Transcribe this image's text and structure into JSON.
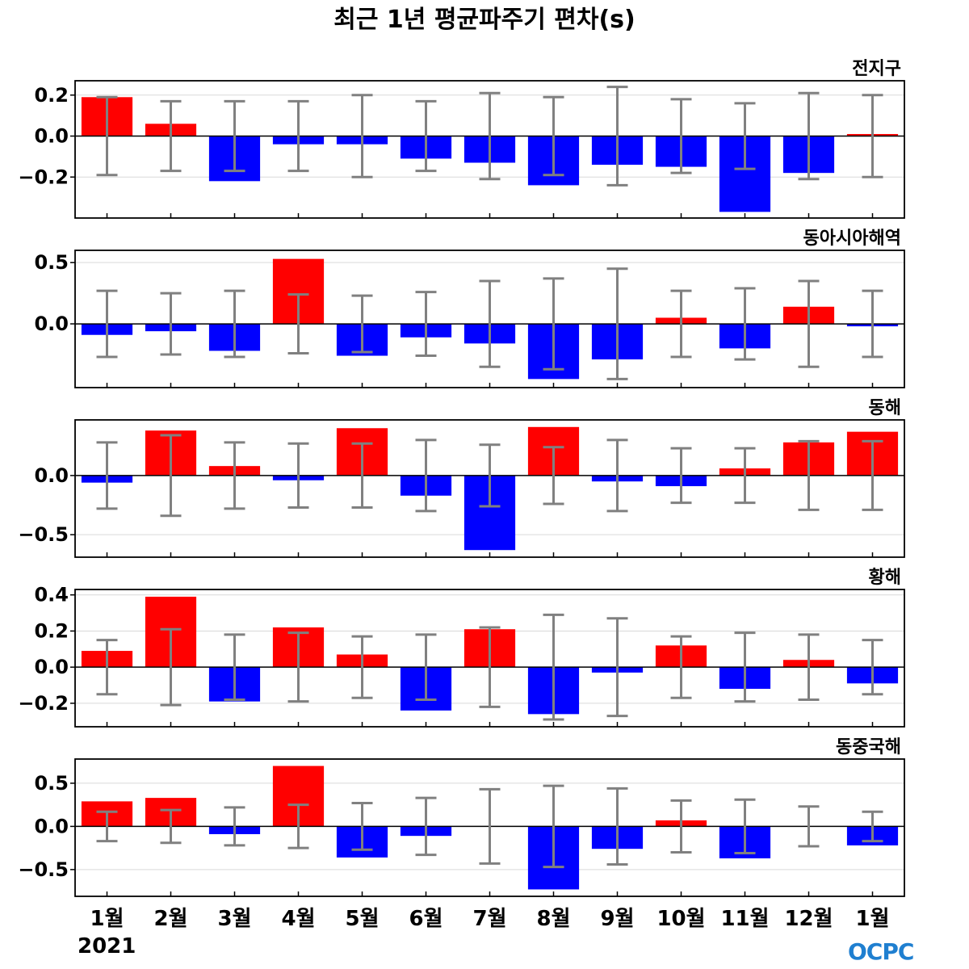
{
  "title": "최근 1년 평균파주기 편차(s)",
  "year_label": "2021",
  "logo_text": "OCPC",
  "colors": {
    "positive": "#ff0000",
    "negative": "#0000ff",
    "errorbar": "#808080",
    "zeroline": "#000000",
    "grid": "#d9d9d9",
    "logo": "#1f7fd0"
  },
  "chart_data": [
    {
      "type": "bar",
      "region": "전지구",
      "categories": [
        "1월",
        "2월",
        "3월",
        "4월",
        "5월",
        "6월",
        "7월",
        "8월",
        "9월",
        "10월",
        "11월",
        "12월",
        "1월"
      ],
      "values": [
        0.19,
        0.06,
        -0.22,
        -0.04,
        -0.04,
        -0.11,
        -0.13,
        -0.24,
        -0.14,
        -0.15,
        -0.37,
        -0.18,
        0.01
      ],
      "error_upper": [
        0.19,
        0.17,
        0.17,
        0.17,
        0.2,
        0.17,
        0.21,
        0.19,
        0.24,
        0.18,
        0.16,
        0.21,
        0.2
      ],
      "error_lower": [
        -0.19,
        -0.17,
        -0.17,
        -0.17,
        -0.2,
        -0.17,
        -0.21,
        -0.19,
        -0.24,
        -0.18,
        -0.16,
        -0.21,
        -0.2
      ],
      "ylim": [
        -0.4,
        0.27
      ],
      "yticks": [
        0.2,
        0.0,
        -0.2
      ],
      "ytick_labels": [
        "0.2",
        "0.0",
        "−0.2"
      ],
      "grid": true
    },
    {
      "type": "bar",
      "region": "동아시아해역",
      "categories": [
        "1월",
        "2월",
        "3월",
        "4월",
        "5월",
        "6월",
        "7월",
        "8월",
        "9월",
        "10월",
        "11월",
        "12월",
        "1월"
      ],
      "values": [
        -0.09,
        -0.06,
        -0.22,
        0.53,
        -0.26,
        -0.11,
        -0.16,
        -0.45,
        -0.29,
        0.05,
        -0.2,
        0.14,
        -0.02
      ],
      "error_upper": [
        0.27,
        0.25,
        0.27,
        0.24,
        0.23,
        0.26,
        0.35,
        0.37,
        0.45,
        0.27,
        0.29,
        0.35,
        0.27
      ],
      "error_lower": [
        -0.27,
        -0.25,
        -0.27,
        -0.24,
        -0.23,
        -0.26,
        -0.35,
        -0.37,
        -0.45,
        -0.27,
        -0.29,
        -0.35,
        -0.27
      ],
      "ylim": [
        -0.52,
        0.6
      ],
      "yticks": [
        0.5,
        0.0
      ],
      "ytick_labels": [
        "0.5",
        "0.0"
      ],
      "grid": true
    },
    {
      "type": "bar",
      "region": "동해",
      "categories": [
        "1월",
        "2월",
        "3월",
        "4월",
        "5월",
        "6월",
        "7월",
        "8월",
        "9월",
        "10월",
        "11월",
        "12월",
        "1월"
      ],
      "values": [
        -0.06,
        0.38,
        0.08,
        -0.04,
        0.4,
        -0.17,
        -0.63,
        0.41,
        -0.05,
        -0.09,
        0.06,
        0.28,
        0.37
      ],
      "error_upper": [
        0.28,
        0.34,
        0.28,
        0.27,
        0.27,
        0.3,
        0.26,
        0.24,
        0.3,
        0.23,
        0.23,
        0.29,
        0.29
      ],
      "error_lower": [
        -0.28,
        -0.34,
        -0.28,
        -0.27,
        -0.27,
        -0.3,
        -0.26,
        -0.24,
        -0.3,
        -0.23,
        -0.23,
        -0.29,
        -0.29
      ],
      "ylim": [
        -0.69,
        0.47
      ],
      "yticks": [
        0.0,
        -0.5
      ],
      "ytick_labels": [
        "0.0",
        "−0.5"
      ],
      "grid": true
    },
    {
      "type": "bar",
      "region": "황해",
      "categories": [
        "1월",
        "2월",
        "3월",
        "4월",
        "5월",
        "6월",
        "7월",
        "8월",
        "9월",
        "10월",
        "11월",
        "12월",
        "1월"
      ],
      "values": [
        0.09,
        0.39,
        -0.19,
        0.22,
        0.07,
        -0.24,
        0.21,
        -0.26,
        -0.03,
        0.12,
        -0.12,
        0.04,
        -0.09
      ],
      "error_upper": [
        0.15,
        0.21,
        0.18,
        0.19,
        0.17,
        0.18,
        0.22,
        0.29,
        0.27,
        0.17,
        0.19,
        0.18,
        0.15
      ],
      "error_lower": [
        -0.15,
        -0.21,
        -0.18,
        -0.19,
        -0.17,
        -0.18,
        -0.22,
        -0.29,
        -0.27,
        -0.17,
        -0.19,
        -0.18,
        -0.15
      ],
      "ylim": [
        -0.33,
        0.43
      ],
      "yticks": [
        0.4,
        0.2,
        0.0,
        -0.2
      ],
      "ytick_labels": [
        "0.4",
        "0.2",
        "0.0",
        "−0.2"
      ],
      "grid": true
    },
    {
      "type": "bar",
      "region": "동중국해",
      "categories": [
        "1월",
        "2월",
        "3월",
        "4월",
        "5월",
        "6월",
        "7월",
        "8월",
        "9월",
        "10월",
        "11월",
        "12월",
        "1월"
      ],
      "values": [
        0.29,
        0.33,
        -0.09,
        0.7,
        -0.36,
        -0.11,
        0.0,
        -0.73,
        -0.26,
        0.07,
        -0.37,
        0.0,
        -0.22
      ],
      "error_upper": [
        0.17,
        0.19,
        0.22,
        0.25,
        0.27,
        0.33,
        0.43,
        0.47,
        0.44,
        0.3,
        0.31,
        0.23,
        0.17
      ],
      "error_lower": [
        -0.17,
        -0.19,
        -0.22,
        -0.25,
        -0.27,
        -0.33,
        -0.43,
        -0.47,
        -0.44,
        -0.3,
        -0.31,
        -0.23,
        -0.17
      ],
      "ylim": [
        -0.81,
        0.78
      ],
      "yticks": [
        0.5,
        0.0,
        -0.5
      ],
      "ytick_labels": [
        "0.5",
        "0.0",
        "−0.5"
      ],
      "grid": true
    }
  ]
}
